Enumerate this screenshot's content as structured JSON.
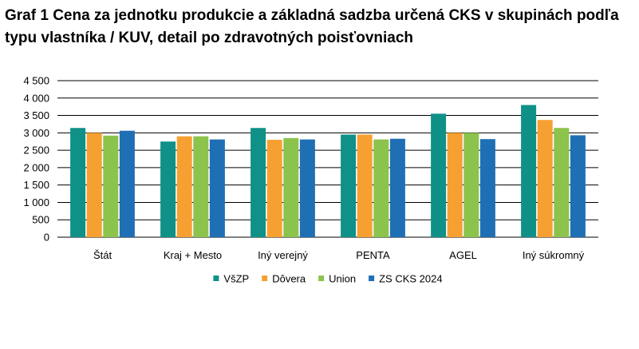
{
  "chart_data": {
    "type": "bar",
    "title": "Graf 1 Cena za jednotku produkcie a základná sadzba určená CKS v skupinách podľa typu vlastníka / KUV, detail po zdravotných poisťovniach",
    "xlabel": "",
    "ylabel": "",
    "ylim": [
      0,
      4500
    ],
    "yticks": [
      0,
      500,
      1000,
      1500,
      2000,
      2500,
      3000,
      3500,
      4000,
      4500
    ],
    "ytick_labels": [
      "0",
      "500",
      "1 000",
      "1 500",
      "2 000",
      "2 500",
      "3 000",
      "3 500",
      "4 000",
      "4 500"
    ],
    "grid": true,
    "legend_position": "bottom",
    "categories": [
      "Štát",
      "Kraj + Mesto",
      "Iný verejný",
      "PENTA",
      "AGEL",
      "Iný súkromný"
    ],
    "series": [
      {
        "name": "VšZP",
        "color": "#0f9188",
        "values": [
          3140,
          2750,
          3140,
          2950,
          3550,
          3800
        ]
      },
      {
        "name": "Dôvera",
        "color": "#f7a032",
        "values": [
          3000,
          2900,
          2800,
          2950,
          3000,
          3370
        ]
      },
      {
        "name": "Union",
        "color": "#8cc34c",
        "values": [
          2920,
          2900,
          2850,
          2810,
          3000,
          3140
        ]
      },
      {
        "name": "ZS CKS 2024",
        "color": "#1f6fb5",
        "values": [
          3060,
          2810,
          2810,
          2830,
          2820,
          2930
        ]
      }
    ]
  }
}
